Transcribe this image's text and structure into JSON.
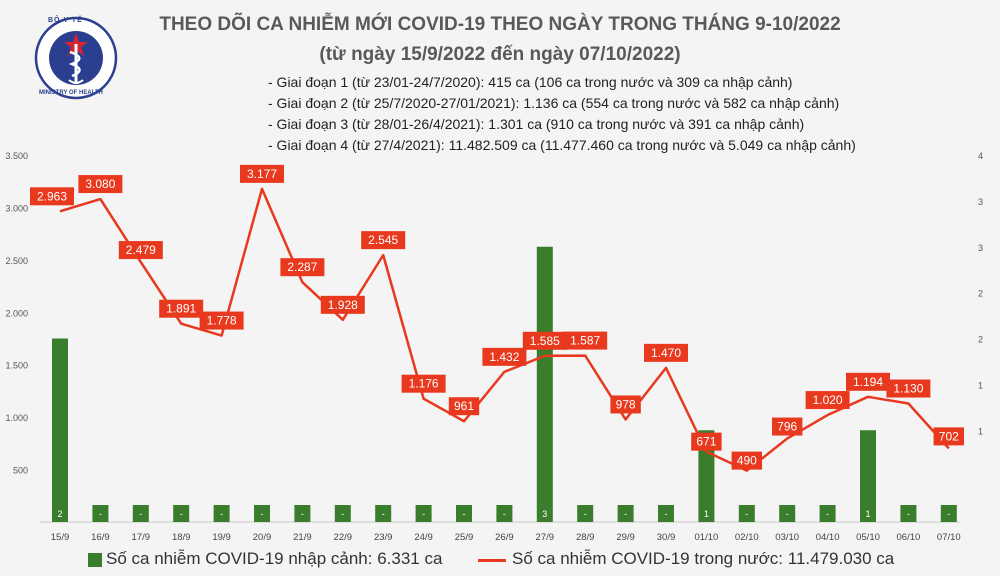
{
  "header": {
    "title": "THEO DÕI CA NHIỄM MỚI COVID-19 THEO NGÀY TRONG THÁNG 9-10/2022",
    "subtitle": "(từ ngày 15/9/2022 đến ngày 07/10/2022)",
    "periods": [
      "- Giai đoạn 1 (từ 23/01-24/7/2020): 415 ca (106 ca trong nước và 309 ca nhập cảnh)",
      "- Giai đoạn 2 (từ 25/7/2020-27/01/2021): 1.136 ca (554 ca trong nước và 582 ca nhập cảnh)",
      "- Giai đoạn 3 (từ 28/01-26/4/2021): 1.301 ca (910 ca trong nước và 391 ca nhập cảnh)",
      "- Giai đoạn 4 (từ 27/4/2021): 11.482.509 ca (11.477.460 ca trong nước và 5.049 ca nhập cảnh)"
    ]
  },
  "logo": {
    "top_text": "BỘ Y TẾ",
    "bottom_text": "MINISTRY OF HEALTH"
  },
  "chart_data": {
    "type": "bar+line",
    "categories": [
      "15/9",
      "16/9",
      "17/9",
      "18/9",
      "19/9",
      "20/9",
      "21/9",
      "22/9",
      "23/9",
      "24/9",
      "25/9",
      "26/9",
      "27/9",
      "28/9",
      "29/9",
      "30/9",
      "01/10",
      "02/10",
      "03/10",
      "04/10",
      "05/10",
      "06/10",
      "07/10"
    ],
    "bar_series": {
      "name": "Số ca nhiễm COVID-19 nhập cảnh: 6.331 ca",
      "axis": "right",
      "values": [
        2,
        0,
        0,
        0,
        0,
        0,
        0,
        0,
        0,
        0,
        0,
        0,
        3,
        0,
        0,
        0,
        1,
        0,
        0,
        0,
        1,
        0,
        0
      ],
      "labels": [
        "2",
        "-",
        "-",
        "-",
        "-",
        "-",
        "-",
        "-",
        "-",
        "-",
        "-",
        "-",
        "3",
        "-",
        "-",
        "-",
        "1",
        "-",
        "-",
        "-",
        "1",
        "-",
        "-"
      ],
      "color": "#3a7d2c"
    },
    "line_series": {
      "name": "Số ca nhiễm COVID-19 trong nước: 11.479.030 ca",
      "axis": "left",
      "values": [
        2963,
        3080,
        2479,
        1891,
        1778,
        3177,
        2287,
        1928,
        2545,
        1176,
        961,
        1432,
        1585,
        1587,
        978,
        1470,
        671,
        490,
        796,
        1020,
        1194,
        1130,
        702
      ],
      "labels": [
        "2.963",
        "3.080",
        "2.479",
        "1.891",
        "1.778",
        "3.177",
        "2.287",
        "1.928",
        "2.545",
        "1.176",
        "961",
        "1.432",
        "1.585",
        "1.587",
        "978",
        "1.470",
        "671",
        "490",
        "796",
        "1.020",
        "1.194",
        "1.130",
        "702"
      ],
      "color": "#e8391e"
    },
    "left_axis": {
      "ylim": [
        0,
        3500
      ],
      "ticks": [
        500,
        1000,
        1500,
        2000,
        2500,
        3000,
        3500
      ],
      "tick_labels": [
        "500",
        "1.000",
        "1.500",
        "2.000",
        "2.500",
        "3.000",
        "3.500"
      ]
    },
    "right_axis": {
      "ylim": [
        0,
        4
      ],
      "ticks": [
        1,
        1.5,
        2,
        2.5,
        3,
        3.5,
        4
      ],
      "tick_labels": [
        "1",
        "1",
        "2",
        "2",
        "3",
        "3",
        "4"
      ]
    },
    "grid": false,
    "legend_position": "bottom"
  }
}
